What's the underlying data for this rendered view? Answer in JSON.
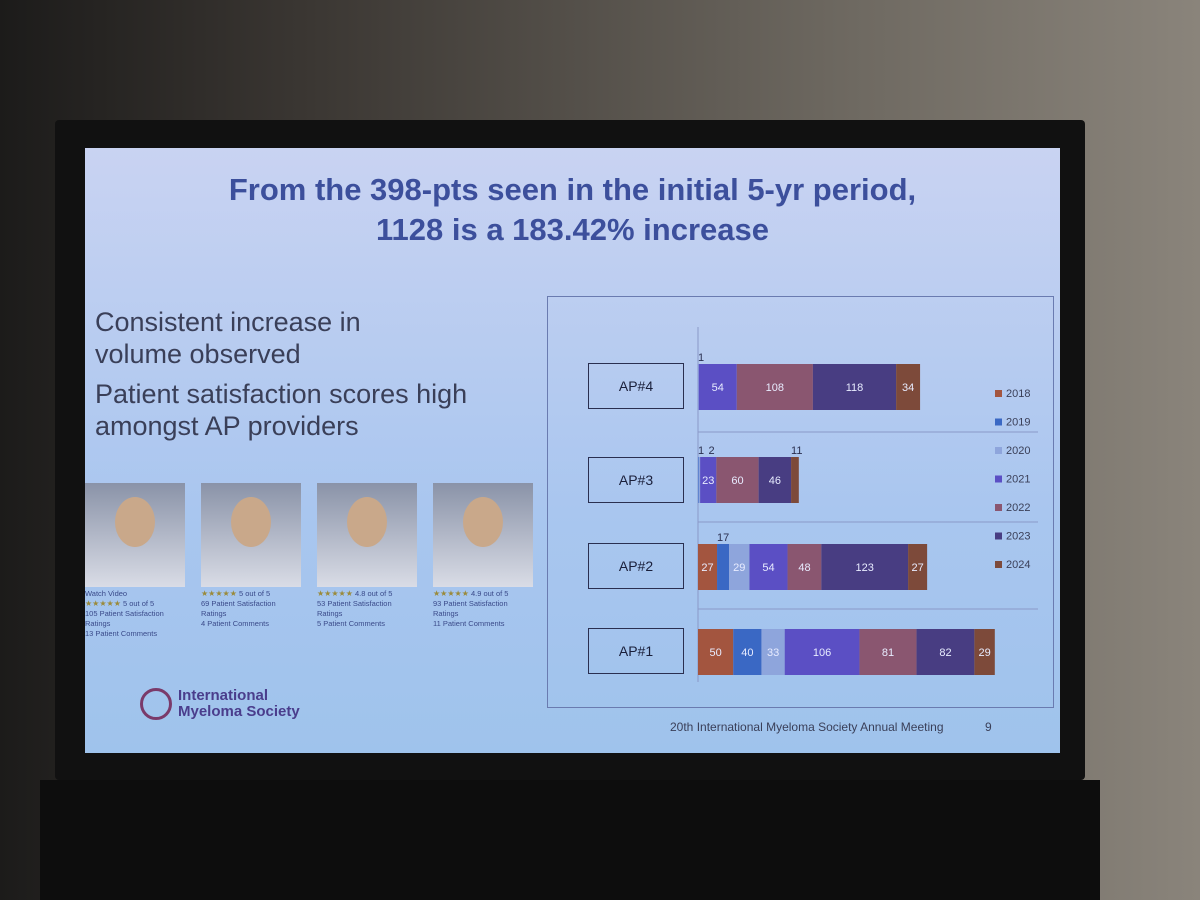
{
  "slide": {
    "title_line1": "From the 398-pts seen in the initial 5-yr period,",
    "title_line2": "1128 is a 183.42% increase",
    "bullets": [
      "Consistent increase in volume observed",
      "Patient satisfaction scores high amongst AP providers"
    ],
    "providers": [
      {
        "watch_video": "Watch Video",
        "rating": "5 out of 5",
        "ratings_count": "105 Patient Satisfaction Ratings",
        "comments": "13 Patient Comments"
      },
      {
        "watch_video": "",
        "rating": "5 out of 5",
        "ratings_count": "69 Patient Satisfaction Ratings",
        "comments": "4 Patient Comments"
      },
      {
        "watch_video": "",
        "rating": "4.8 out of 5",
        "ratings_count": "53 Patient Satisfaction Ratings",
        "comments": "5 Patient Comments"
      },
      {
        "watch_video": "",
        "rating": "4.9 out of 5",
        "ratings_count": "93 Patient Satisfaction Ratings",
        "comments": "11 Patient Comments"
      }
    ],
    "stars": "★★★★★",
    "logo_line1": "International",
    "logo_line2": "Myeloma Society",
    "footer": "20th International Myeloma Society Annual Meeting",
    "page_number": "9"
  },
  "chart_data": {
    "type": "bar",
    "orientation": "horizontal",
    "stacked": true,
    "categories": [
      "AP#4",
      "AP#3",
      "AP#2",
      "AP#1"
    ],
    "series": [
      {
        "name": "2018",
        "color": "#a3553f",
        "values": [
          0,
          0,
          27,
          50
        ]
      },
      {
        "name": "2019",
        "color": "#3a68c4",
        "values": [
          0,
          1,
          17,
          40
        ]
      },
      {
        "name": "2020",
        "color": "#8ea5dc",
        "values": [
          1,
          2,
          29,
          33
        ]
      },
      {
        "name": "2021",
        "color": "#5b4fc4",
        "values": [
          54,
          23,
          54,
          106
        ]
      },
      {
        "name": "2022",
        "color": "#8a5670",
        "values": [
          108,
          60,
          48,
          81
        ]
      },
      {
        "name": "2023",
        "color": "#483d82",
        "values": [
          118,
          46,
          123,
          82
        ]
      },
      {
        "name": "2024",
        "color": "#7d4a3a",
        "values": [
          34,
          11,
          27,
          29
        ]
      }
    ],
    "legend_position": "right",
    "grid": true
  }
}
